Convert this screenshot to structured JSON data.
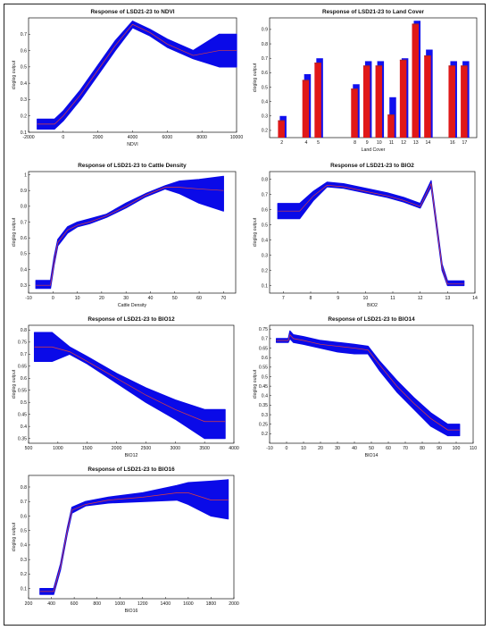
{
  "chart_data": [
    {
      "id": "ndvi",
      "type": "line",
      "title": "Response of LSD21-23 to NDVI",
      "xlabel": "NDVI",
      "ylabel": "cloglog output",
      "xlim": [
        -2000,
        10000
      ],
      "ylim": [
        0.1,
        0.8
      ],
      "xticks": [
        -2000,
        0,
        2000,
        4000,
        6000,
        8000,
        10000
      ],
      "yticks": [
        0.1,
        0.2,
        0.3,
        0.4,
        0.5,
        0.6,
        0.7
      ],
      "series": [
        {
          "x": [
            -1500,
            -500,
            0,
            1000,
            2000,
            3000,
            4000,
            5000,
            6000,
            7500,
            9000,
            10000
          ],
          "y": [
            0.15,
            0.15,
            0.2,
            0.33,
            0.48,
            0.63,
            0.76,
            0.71,
            0.64,
            0.57,
            0.6,
            0.6
          ],
          "lower": [
            0.12,
            0.12,
            0.17,
            0.3,
            0.45,
            0.6,
            0.74,
            0.69,
            0.62,
            0.55,
            0.5,
            0.5
          ],
          "upper": [
            0.18,
            0.18,
            0.23,
            0.36,
            0.51,
            0.66,
            0.78,
            0.73,
            0.67,
            0.6,
            0.7,
            0.7
          ]
        }
      ]
    },
    {
      "id": "landcover",
      "type": "bar",
      "title": "Response of LSD21-23 to Land Cover",
      "xlabel": "Land Cover",
      "ylabel": "cloglog output",
      "ylim": [
        0.15,
        0.98
      ],
      "yticks": [
        0.2,
        0.3,
        0.4,
        0.5,
        0.6,
        0.7,
        0.8,
        0.9
      ],
      "categories": [
        "2",
        "4",
        "5",
        "8",
        "9",
        "10",
        "11",
        "12",
        "13",
        "14",
        "16",
        "17"
      ],
      "values": [
        0.27,
        0.55,
        0.67,
        0.49,
        0.65,
        0.65,
        0.31,
        0.69,
        0.94,
        0.72,
        0.65,
        0.65
      ],
      "upper": [
        0.3,
        0.59,
        0.7,
        0.52,
        0.68,
        0.68,
        0.43,
        0.7,
        0.96,
        0.76,
        0.68,
        0.68
      ]
    },
    {
      "id": "cattle",
      "type": "line",
      "title": "Response of LSD21-23 to Cattle Density",
      "xlabel": "Cattle Density",
      "ylabel": "cloglog output",
      "xlim": [
        -10,
        75
      ],
      "ylim": [
        0.25,
        1.02
      ],
      "xticks": [
        -10,
        0,
        10,
        20,
        30,
        40,
        50,
        60,
        70
      ],
      "yticks": [
        0.3,
        0.4,
        0.5,
        0.6,
        0.7,
        0.8,
        0.9,
        1.0
      ],
      "series": [
        {
          "x": [
            -7,
            -1,
            0.5,
            2,
            4,
            6,
            10,
            15,
            22,
            30,
            38,
            46,
            52,
            60,
            70
          ],
          "y": [
            0.3,
            0.3,
            0.45,
            0.57,
            0.61,
            0.65,
            0.68,
            0.7,
            0.74,
            0.8,
            0.87,
            0.92,
            0.92,
            0.91,
            0.9
          ],
          "lower": [
            0.28,
            0.28,
            0.43,
            0.55,
            0.59,
            0.63,
            0.67,
            0.69,
            0.73,
            0.79,
            0.86,
            0.91,
            0.88,
            0.82,
            0.77
          ],
          "upper": [
            0.33,
            0.33,
            0.48,
            0.59,
            0.63,
            0.67,
            0.7,
            0.72,
            0.75,
            0.82,
            0.88,
            0.93,
            0.96,
            0.97,
            0.99
          ]
        }
      ]
    },
    {
      "id": "bio2",
      "type": "line",
      "title": "Response of LSD21-23 to BIO2",
      "xlabel": "BIO2",
      "ylabel": "cloglog output",
      "xlim": [
        6.5,
        14
      ],
      "ylim": [
        0.05,
        0.85
      ],
      "xticks": [
        7,
        8,
        9,
        10,
        11,
        12,
        13,
        14
      ],
      "yticks": [
        0.1,
        0.2,
        0.3,
        0.4,
        0.5,
        0.6,
        0.7,
        0.8
      ],
      "series": [
        {
          "x": [
            6.8,
            7.6,
            8.1,
            8.6,
            9.2,
            10,
            10.8,
            11.4,
            12.0,
            12.4,
            12.8,
            13.0,
            13.6
          ],
          "y": [
            0.59,
            0.59,
            0.69,
            0.76,
            0.75,
            0.72,
            0.69,
            0.66,
            0.62,
            0.77,
            0.22,
            0.11,
            0.11
          ],
          "lower": [
            0.54,
            0.54,
            0.66,
            0.75,
            0.74,
            0.71,
            0.68,
            0.65,
            0.61,
            0.75,
            0.2,
            0.1,
            0.1
          ],
          "upper": [
            0.64,
            0.64,
            0.72,
            0.78,
            0.77,
            0.74,
            0.71,
            0.68,
            0.64,
            0.79,
            0.24,
            0.13,
            0.13
          ]
        }
      ]
    },
    {
      "id": "bio12",
      "type": "line",
      "title": "Response of LSD21-23 to BIO12",
      "xlabel": "BIO12",
      "ylabel": "cloglog output",
      "xlim": [
        500,
        4000
      ],
      "ylim": [
        0.33,
        0.82
      ],
      "xticks": [
        500,
        1000,
        1500,
        2000,
        2500,
        3000,
        3500,
        4000
      ],
      "yticks": [
        0.35,
        0.4,
        0.45,
        0.5,
        0.55,
        0.6,
        0.65,
        0.7,
        0.75,
        0.8
      ],
      "series": [
        {
          "x": [
            600,
            900,
            1200,
            1500,
            2000,
            2500,
            3000,
            3500,
            3850
          ],
          "y": [
            0.73,
            0.73,
            0.71,
            0.67,
            0.6,
            0.53,
            0.47,
            0.42,
            0.42
          ],
          "lower": [
            0.67,
            0.67,
            0.7,
            0.66,
            0.58,
            0.5,
            0.43,
            0.35,
            0.35
          ],
          "upper": [
            0.79,
            0.79,
            0.73,
            0.69,
            0.62,
            0.56,
            0.51,
            0.47,
            0.47
          ]
        }
      ]
    },
    {
      "id": "bio14",
      "type": "line",
      "title": "Response of LSD21-23 to BIO14",
      "xlabel": "BIO14",
      "ylabel": "cloglog output",
      "xlim": [
        -10,
        110
      ],
      "ylim": [
        0.15,
        0.77
      ],
      "xticks": [
        -10,
        0,
        10,
        20,
        30,
        40,
        50,
        60,
        70,
        80,
        90,
        100,
        110
      ],
      "yticks": [
        0.2,
        0.25,
        0.3,
        0.35,
        0.4,
        0.45,
        0.5,
        0.55,
        0.6,
        0.65,
        0.7,
        0.75
      ],
      "series": [
        {
          "x": [
            -6,
            1,
            2,
            4,
            10,
            20,
            30,
            40,
            48,
            55,
            65,
            75,
            85,
            95,
            102
          ],
          "y": [
            0.69,
            0.69,
            0.72,
            0.7,
            0.69,
            0.67,
            0.66,
            0.65,
            0.64,
            0.56,
            0.45,
            0.36,
            0.28,
            0.22,
            0.22
          ],
          "lower": [
            0.68,
            0.68,
            0.7,
            0.68,
            0.67,
            0.65,
            0.63,
            0.62,
            0.62,
            0.53,
            0.42,
            0.33,
            0.24,
            0.19,
            0.19
          ],
          "upper": [
            0.7,
            0.7,
            0.74,
            0.72,
            0.71,
            0.69,
            0.68,
            0.67,
            0.66,
            0.58,
            0.48,
            0.39,
            0.31,
            0.25,
            0.25
          ]
        }
      ]
    },
    {
      "id": "bio16",
      "type": "line",
      "title": "Response of LSD21-23 to BIO16",
      "xlabel": "BIO16",
      "ylabel": "cloglog output",
      "xlim": [
        200,
        2000
      ],
      "ylim": [
        0.03,
        0.88
      ],
      "xticks": [
        200,
        400,
        600,
        800,
        1000,
        1200,
        1400,
        1600,
        1800,
        2000
      ],
      "yticks": [
        0.1,
        0.2,
        0.3,
        0.4,
        0.5,
        0.6,
        0.7,
        0.8
      ],
      "series": [
        {
          "x": [
            300,
            420,
            480,
            540,
            580,
            700,
            900,
            1200,
            1500,
            1600,
            1800,
            1950
          ],
          "y": [
            0.08,
            0.08,
            0.25,
            0.5,
            0.64,
            0.68,
            0.71,
            0.73,
            0.76,
            0.76,
            0.71,
            0.71
          ],
          "lower": [
            0.06,
            0.06,
            0.23,
            0.48,
            0.62,
            0.67,
            0.69,
            0.7,
            0.71,
            0.68,
            0.6,
            0.58
          ],
          "upper": [
            0.1,
            0.1,
            0.27,
            0.52,
            0.66,
            0.7,
            0.73,
            0.76,
            0.81,
            0.83,
            0.84,
            0.85
          ]
        }
      ]
    }
  ]
}
